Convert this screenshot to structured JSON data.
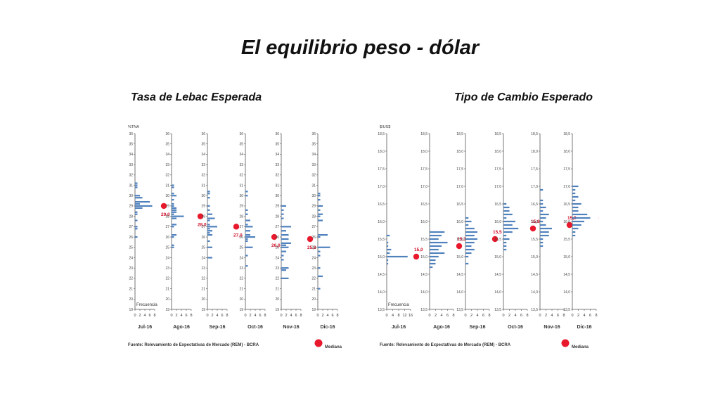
{
  "title": "El equilibrio peso - dólar",
  "left_heading": "Tasa de Lebac Esperada",
  "right_heading": "Tipo de Cambio Esperado",
  "chart_data": [
    {
      "type": "bar",
      "name": "lebac",
      "unit_label": "%TNA",
      "freq_label": "Frecuencia",
      "source": "Fuente: Relevamiento de Expectativas de Mercado (REM) - BCRA",
      "legend": "Mediana",
      "median_color": "#e8192c",
      "bar_color": "#4f81bd",
      "ylim": [
        19,
        36
      ],
      "yticks": [
        "19",
        "20",
        "21",
        "22",
        "23",
        "24",
        "25",
        "26",
        "27",
        "28",
        "29",
        "30",
        "31",
        "32",
        "33",
        "34",
        "35",
        "36"
      ],
      "freq_ticks": [
        "0",
        "2",
        "4",
        "6",
        "8"
      ],
      "freq_max": 8,
      "months": [
        {
          "label": "Jul-16",
          "median": 29.0,
          "median_label": "29,0",
          "bars": [
            [
              31.2,
              1
            ],
            [
              31.0,
              1
            ],
            [
              30.8,
              1
            ],
            [
              30.0,
              2
            ],
            [
              29.8,
              3
            ],
            [
              29.4,
              6
            ],
            [
              29.2,
              2
            ],
            [
              29.0,
              7
            ],
            [
              28.8,
              3
            ],
            [
              28.4,
              1
            ],
            [
              28.2,
              1
            ],
            [
              27.6,
              1
            ],
            [
              27.0,
              1
            ],
            [
              26.8,
              1
            ],
            [
              26.0,
              1
            ]
          ]
        },
        {
          "label": "Ago-16",
          "median": 28.0,
          "median_label": "28,0",
          "bars": [
            [
              31.0,
              1
            ],
            [
              30.8,
              1
            ],
            [
              30.2,
              1
            ],
            [
              30.0,
              2
            ],
            [
              29.6,
              1
            ],
            [
              29.2,
              1
            ],
            [
              29.0,
              1
            ],
            [
              28.8,
              2
            ],
            [
              28.6,
              2
            ],
            [
              28.4,
              2
            ],
            [
              28.2,
              1
            ],
            [
              28.0,
              5
            ],
            [
              27.8,
              2
            ],
            [
              27.2,
              2
            ],
            [
              27.0,
              1
            ],
            [
              26.2,
              2
            ],
            [
              26.0,
              1
            ],
            [
              25.2,
              1
            ],
            [
              25.0,
              1
            ]
          ]
        },
        {
          "label": "Sep-16",
          "median": 27.0,
          "median_label": "27,0",
          "bars": [
            [
              30.4,
              1
            ],
            [
              30.2,
              1
            ],
            [
              29.8,
              1
            ],
            [
              29.0,
              1
            ],
            [
              28.6,
              1
            ],
            [
              28.2,
              2
            ],
            [
              27.8,
              3
            ],
            [
              27.6,
              1
            ],
            [
              27.2,
              1
            ],
            [
              27.0,
              4
            ],
            [
              26.8,
              1
            ],
            [
              26.6,
              2
            ],
            [
              26.4,
              1
            ],
            [
              26.2,
              2
            ],
            [
              25.6,
              1
            ],
            [
              25.0,
              2
            ],
            [
              24.0,
              2
            ]
          ]
        },
        {
          "label": "Oct-16",
          "median": 26.0,
          "median_label": "26,0",
          "bars": [
            [
              30.4,
              1
            ],
            [
              30.0,
              1
            ],
            [
              28.6,
              1
            ],
            [
              28.2,
              1
            ],
            [
              27.6,
              2
            ],
            [
              27.2,
              1
            ],
            [
              27.0,
              3
            ],
            [
              26.6,
              2
            ],
            [
              26.2,
              2
            ],
            [
              26.0,
              4
            ],
            [
              25.8,
              1
            ],
            [
              25.6,
              1
            ],
            [
              25.0,
              3
            ],
            [
              24.2,
              1
            ],
            [
              23.2,
              1
            ]
          ]
        },
        {
          "label": "Nov-16",
          "median": 25.8,
          "median_label": "25,8",
          "bars": [
            [
              29.0,
              2
            ],
            [
              28.6,
              1
            ],
            [
              28.2,
              1
            ],
            [
              27.8,
              1
            ],
            [
              27.0,
              4
            ],
            [
              26.6,
              2
            ],
            [
              26.2,
              3
            ],
            [
              25.8,
              3
            ],
            [
              25.4,
              4
            ],
            [
              25.2,
              2
            ],
            [
              25.0,
              3
            ],
            [
              24.6,
              2
            ],
            [
              24.2,
              1
            ],
            [
              23.8,
              1
            ],
            [
              23.0,
              3
            ],
            [
              22.8,
              2
            ],
            [
              22.0,
              3
            ]
          ]
        },
        {
          "label": "Dic-16",
          "median": 25.3,
          "median_label": "25,3",
          "bars": [
            [
              30.2,
              1
            ],
            [
              30.0,
              1
            ],
            [
              29.6,
              1
            ],
            [
              29.0,
              2
            ],
            [
              28.6,
              1
            ],
            [
              28.2,
              2
            ],
            [
              28.0,
              1
            ],
            [
              27.6,
              2
            ],
            [
              26.2,
              4
            ],
            [
              26.0,
              1
            ],
            [
              25.0,
              5
            ],
            [
              24.6,
              1
            ],
            [
              24.2,
              1
            ],
            [
              23.0,
              1
            ],
            [
              22.2,
              2
            ],
            [
              21.0,
              1
            ]
          ]
        }
      ]
    },
    {
      "type": "bar",
      "name": "tipo-de-cambio",
      "unit_label": "$/US$",
      "freq_label": "Frecuencia",
      "source": "Fuente: Relevamiento de Expectativas de Mercado (REM) - BCRA",
      "legend": "Mediana",
      "median_color": "#e8192c",
      "bar_color": "#4f81bd",
      "ylim": [
        13.5,
        18.5
      ],
      "yticks": [
        "13,5",
        "14,0",
        "14,5",
        "15,0",
        "15,5",
        "16,0",
        "16,5",
        "17,0",
        "17,5",
        "18,0",
        "18,5"
      ],
      "freq_ticks_first": [
        "0",
        "4",
        "8",
        "12",
        "16"
      ],
      "freq_max_first": 16,
      "freq_ticks": [
        "0",
        "2",
        "4",
        "6",
        "8"
      ],
      "freq_max": 8,
      "months": [
        {
          "label": "Jul-16",
          "median": 15.0,
          "median_label": "15,0",
          "bars": [
            [
              15.6,
              2
            ],
            [
              15.4,
              1
            ],
            [
              15.3,
              1
            ],
            [
              15.2,
              3
            ],
            [
              15.1,
              2
            ],
            [
              15.0,
              14
            ],
            [
              14.9,
              1
            ],
            [
              14.8,
              1
            ]
          ]
        },
        {
          "label": "Ago-16",
          "median": 15.3,
          "median_label": "15,3",
          "bars": [
            [
              15.7,
              5
            ],
            [
              15.6,
              4
            ],
            [
              15.5,
              3
            ],
            [
              15.4,
              6
            ],
            [
              15.3,
              4
            ],
            [
              15.2,
              3
            ],
            [
              15.1,
              5
            ],
            [
              15.0,
              3
            ],
            [
              14.9,
              2
            ],
            [
              14.8,
              2
            ],
            [
              14.7,
              1
            ]
          ]
        },
        {
          "label": "Sep-16",
          "median": 15.5,
          "median_label": "15,5",
          "bars": [
            [
              16.1,
              1
            ],
            [
              16.0,
              2
            ],
            [
              15.9,
              1
            ],
            [
              15.8,
              3
            ],
            [
              15.7,
              4
            ],
            [
              15.6,
              3
            ],
            [
              15.5,
              4
            ],
            [
              15.4,
              3
            ],
            [
              15.3,
              2
            ],
            [
              15.2,
              3
            ],
            [
              15.1,
              2
            ],
            [
              15.0,
              1
            ],
            [
              14.8,
              1
            ]
          ]
        },
        {
          "label": "Oct-16",
          "median": 15.8,
          "median_label": "15,8",
          "bars": [
            [
              16.5,
              1
            ],
            [
              16.4,
              2
            ],
            [
              16.3,
              2
            ],
            [
              16.2,
              3
            ],
            [
              16.1,
              1
            ],
            [
              16.0,
              4
            ],
            [
              15.9,
              3
            ],
            [
              15.8,
              5
            ],
            [
              15.7,
              3
            ],
            [
              15.6,
              1
            ],
            [
              15.5,
              2
            ],
            [
              15.4,
              1
            ],
            [
              15.3,
              1
            ],
            [
              15.2,
              1
            ]
          ]
        },
        {
          "label": "Nov-16",
          "median": 15.9,
          "median_label": "15,9",
          "bars": [
            [
              16.9,
              1
            ],
            [
              16.6,
              1
            ],
            [
              16.5,
              1
            ],
            [
              16.4,
              2
            ],
            [
              16.3,
              1
            ],
            [
              16.2,
              3
            ],
            [
              16.1,
              2
            ],
            [
              16.0,
              1
            ],
            [
              15.9,
              2
            ],
            [
              15.8,
              4
            ],
            [
              15.7,
              3
            ],
            [
              15.6,
              3
            ],
            [
              15.5,
              1
            ],
            [
              15.4,
              1
            ],
            [
              15.3,
              1
            ]
          ]
        },
        {
          "label": "Dic-16",
          "median": 16.1,
          "median_label": "16,1",
          "bars": [
            [
              17.0,
              2
            ],
            [
              16.9,
              1
            ],
            [
              16.8,
              1
            ],
            [
              16.7,
              2
            ],
            [
              16.6,
              1
            ],
            [
              16.5,
              3
            ],
            [
              16.4,
              2
            ],
            [
              16.3,
              2
            ],
            [
              16.2,
              5
            ],
            [
              16.1,
              6
            ],
            [
              16.0,
              4
            ],
            [
              15.9,
              3
            ],
            [
              15.8,
              2
            ],
            [
              15.7,
              1
            ],
            [
              15.6,
              1
            ]
          ]
        }
      ]
    }
  ]
}
